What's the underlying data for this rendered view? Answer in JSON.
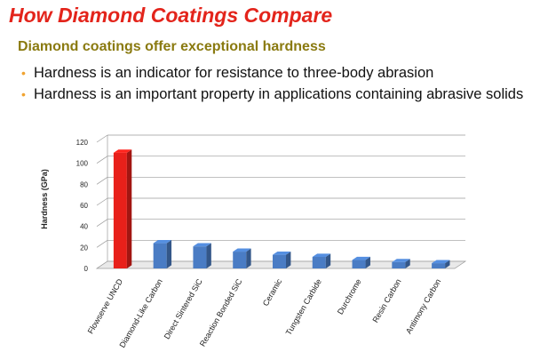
{
  "slide": {
    "title": "How Diamond Coatings Compare",
    "subtitle": "Diamond coatings offer exceptional hardness",
    "bullets": [
      "Hardness is an indicator for resistance to three-body abrasion",
      "Hardness is an important property in applications containing abrasive solids"
    ],
    "bullet_color": "#f0a330",
    "title_color": "#e3241b",
    "subtitle_color": "#8a7a10"
  },
  "chart_data": {
    "type": "bar",
    "title": "",
    "xlabel": "",
    "ylabel": "Hardness (GPa)",
    "ylim": [
      0,
      120
    ],
    "yticks": [
      0,
      20,
      40,
      60,
      80,
      100,
      120
    ],
    "grid": true,
    "categories": [
      "Flowserve UNCD",
      "Diamond-Like Carbon",
      "Direct Sintered SiC",
      "Reaction Bonded SiC",
      "Ceramic",
      "Tungsten Carbide",
      "Durchrome",
      "Resin Carbon",
      "Antimony Carbon"
    ],
    "values": [
      110,
      24,
      21,
      16,
      13,
      11,
      8,
      6,
      5
    ],
    "colors": [
      "#e8201a",
      "#4a7cc4",
      "#4a7cc4",
      "#4a7cc4",
      "#4a7cc4",
      "#4a7cc4",
      "#4a7cc4",
      "#4a7cc4",
      "#4a7cc4"
    ]
  }
}
